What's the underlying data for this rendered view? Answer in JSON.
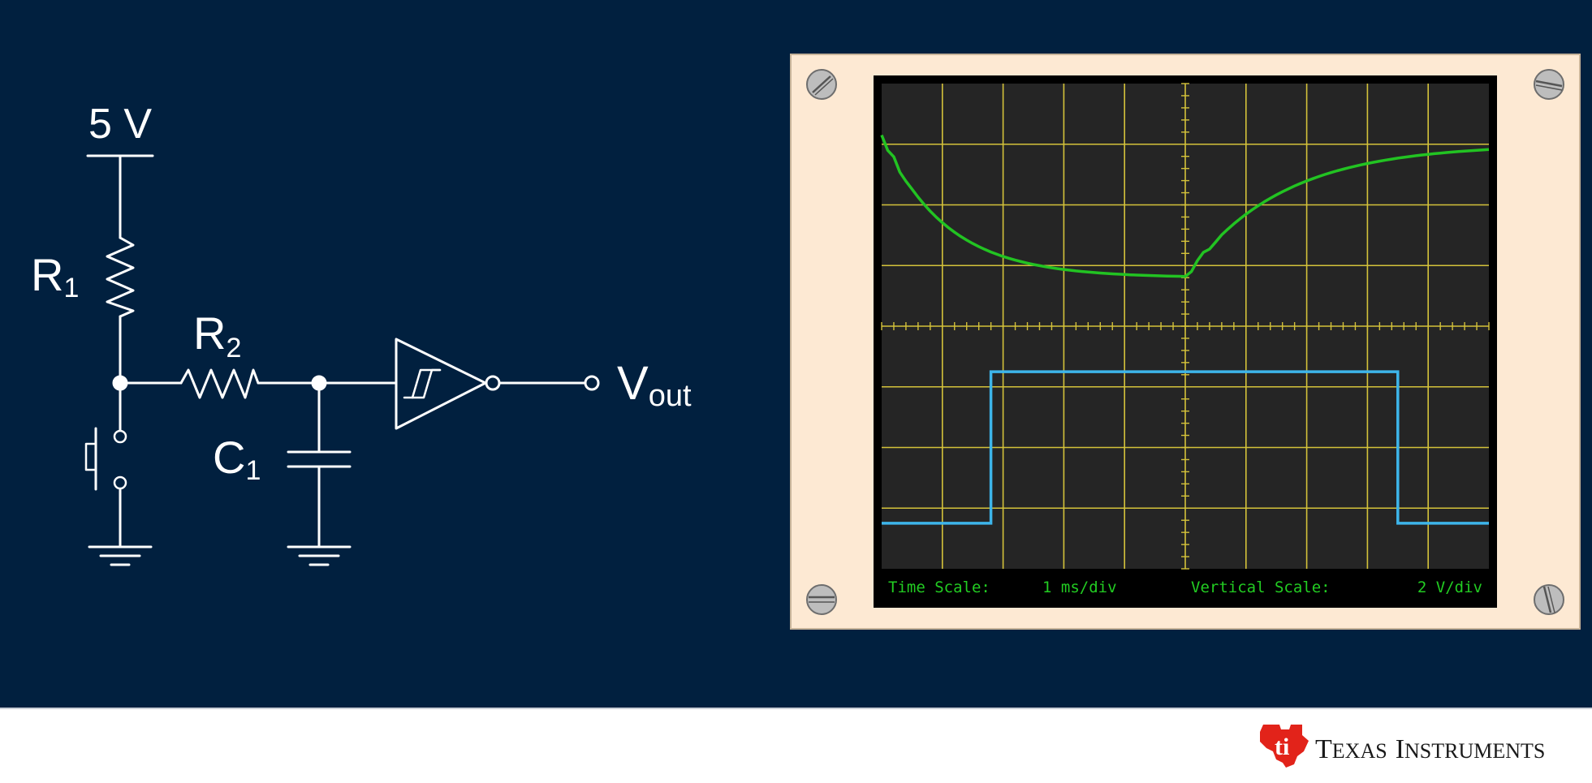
{
  "circuit": {
    "supply_label": "5 V",
    "r1": {
      "main": "R",
      "sub": "1"
    },
    "r2": {
      "main": "R",
      "sub": "2"
    },
    "c1": {
      "main": "C",
      "sub": "1"
    },
    "vout": {
      "main": "V",
      "sub": "out"
    }
  },
  "scope": {
    "time_scale_label": "Time Scale:",
    "time_scale_value": "1 ms/div",
    "vertical_scale_label": "Vertical Scale:",
    "vertical_scale_value": "2 V/div",
    "trace_colors": {
      "capacitor_voltage": "#22c322",
      "output_voltage": "#3db5ea"
    },
    "grid_color": "#d4c23a"
  },
  "footer": {
    "brand_big_1": "T",
    "brand_small_1": "EXAS",
    "brand_big_2": "I",
    "brand_small_2": "NSTRUMENTS"
  },
  "colors": {
    "background": "#01203f",
    "brand_red": "#e2231a"
  }
}
